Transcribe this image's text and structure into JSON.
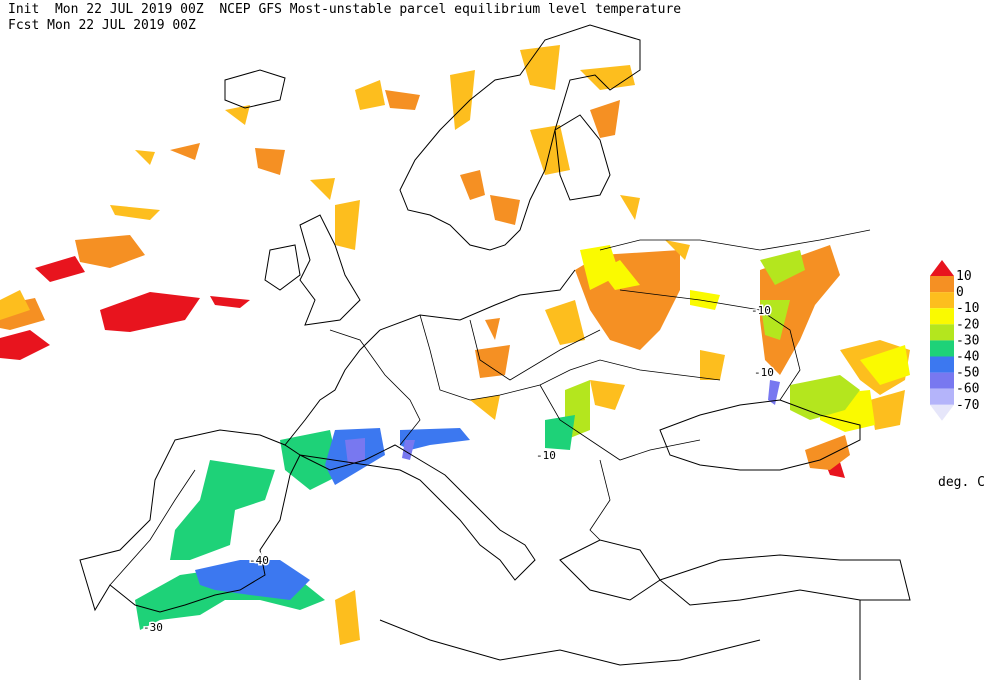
{
  "header": {
    "init": "Init  Mon 22 JUL 2019 00Z  NCEP GFS Most-unstable parcel equilibrium level temperature",
    "forecast": "Fcst Mon 22 JUL 2019 00Z"
  },
  "legend": {
    "levels": [
      10,
      0,
      -10,
      -20,
      -30,
      -40,
      -50,
      -60,
      -70
    ],
    "colors": [
      "#e8141e",
      "#f59023",
      "#fdbe1e",
      "#fafa00",
      "#b4e61e",
      "#1ed278",
      "#3c78f0",
      "#7878f0",
      "#b4b4fa",
      "#e6e6fa"
    ],
    "unit": "deg. C"
  },
  "contour_labels": [
    "-10",
    "-10",
    "-10",
    "-40",
    "-30"
  ]
}
